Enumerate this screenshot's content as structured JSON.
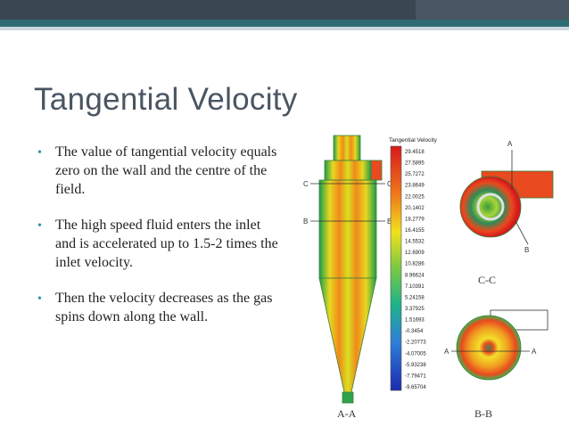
{
  "slide": {
    "title": "Tangential Velocity",
    "bullets": [
      "The value of tangential velocity equals zero on the wall and the centre of the field.",
      "The high speed fluid enters the inlet and is accelerated up to 1.5-2 times the inlet velocity.",
      "Then the velocity decreases as the gas spins down along the wall."
    ],
    "colors": {
      "topbar": "#3a4753",
      "accent": "#2e6b73",
      "bullet": "#2f8f9d",
      "title": "#4a5562"
    }
  },
  "figure": {
    "legend_title": "Tangential Velocity",
    "legend_values": [
      "29.4518",
      "27.5895",
      "25.7272",
      "23.8649",
      "22.0025",
      "20.1402",
      "18.2779",
      "16.4155",
      "14.5532",
      "12.6909",
      "10.8286",
      "8.96624",
      "7.10391",
      "5.24158",
      "3.37925",
      "1.51693",
      "-0.3454",
      "-2.20773",
      "-4.07005",
      "-5.93238",
      "-7.79471",
      "-9.65704"
    ],
    "label_aa": "A-A",
    "label_bb": "B-B",
    "label_cc": "C-C",
    "marker_a": "A",
    "marker_b": "B",
    "marker_c": "C"
  }
}
